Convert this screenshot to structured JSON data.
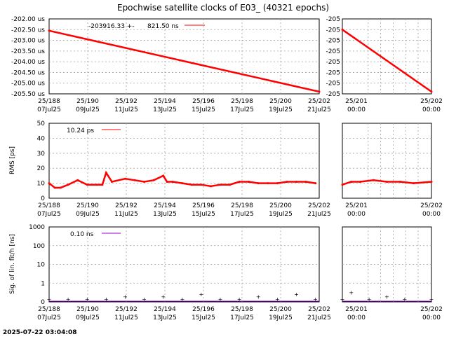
{
  "title": "Epochwise satellite clocks of E03_ (40321 epochs)",
  "timestamp": "2025-07-22 03:04:08",
  "colors": {
    "clock": "#ff0000",
    "rms": "#ff0000",
    "sig": "#9400d3",
    "grid": "#a0a0a0"
  },
  "chart_data": [
    {
      "id": "clock-main",
      "type": "line",
      "ylabel": "",
      "ytick_labels": [
        "-202.00 us",
        "-202.50 us",
        "-203.00 us",
        "-203.50 us",
        "-204.00 us",
        "-204.50 us",
        "-205.00 us",
        "-205.50 us"
      ],
      "ylim": [
        -205.5,
        -202.0
      ],
      "x_ticks": [
        {
          "top": "25/188",
          "bottom": "07Jul25"
        },
        {
          "top": "25/190",
          "bottom": "09Jul25"
        },
        {
          "top": "25/192",
          "bottom": "11Jul25"
        },
        {
          "top": "25/194",
          "bottom": "13Jul25"
        },
        {
          "top": "25/196",
          "bottom": "15Jul25"
        },
        {
          "top": "25/198",
          "bottom": "17Jul25"
        },
        {
          "top": "25/200",
          "bottom": "19Jul25"
        },
        {
          "top": "25/202",
          "bottom": "21Jul25"
        }
      ],
      "xlim": [
        188,
        202.2
      ],
      "legend": {
        "value_text": "-203916.33 +-",
        "value_text2": "821.50 ns"
      },
      "series": [
        {
          "x": [
            188.0,
            202.2
          ],
          "y": [
            -202.55,
            -205.4
          ]
        }
      ]
    },
    {
      "id": "clock-zoom",
      "type": "line",
      "ytick_labels": [
        "-205",
        "-205",
        "-205",
        "-205",
        "-205",
        "-205",
        "-205",
        "-205"
      ],
      "ylim": [
        -205.5,
        -202.0
      ],
      "x_ticks": [
        {
          "top": "25/201",
          "bottom": "00:00"
        },
        {
          "top": "25/202",
          "bottom": "00:00"
        }
      ],
      "series": [
        {
          "x": [
            201.0,
            202.0
          ],
          "y": [
            -202.5,
            -205.4
          ]
        }
      ]
    },
    {
      "id": "rms-main",
      "type": "line",
      "ylabel": "RMS [ps]",
      "ytick_labels": [
        "0",
        "10",
        "20",
        "30",
        "40",
        "50"
      ],
      "ylim": [
        0,
        50
      ],
      "xlim": [
        188,
        202.2
      ],
      "legend": {
        "value_text": "10.24 ps"
      },
      "series": [
        {
          "x": [
            188.0,
            188.3,
            188.6,
            189.0,
            189.5,
            190.0,
            190.5,
            190.8,
            191.0,
            191.3,
            192.0,
            192.5,
            193.0,
            193.5,
            194.0,
            194.2,
            194.5,
            195.0,
            195.5,
            196.0,
            196.5,
            197.0,
            197.5,
            198.0,
            198.5,
            199.0,
            199.5,
            200.0,
            200.5,
            201.0,
            201.5,
            202.0
          ],
          "y": [
            10,
            7,
            7,
            9,
            12,
            9,
            9,
            9,
            17,
            11,
            13,
            12,
            11,
            12,
            15,
            11,
            11,
            10,
            9,
            9,
            8,
            9,
            9,
            11,
            11,
            10,
            10,
            10,
            11,
            11,
            11,
            10
          ]
        }
      ]
    },
    {
      "id": "rms-zoom",
      "type": "line",
      "ytick_labels": [],
      "ylim": [
        0,
        50
      ],
      "x_ticks": [
        {
          "top": "25/201",
          "bottom": "00:00"
        },
        {
          "top": "25/202",
          "bottom": "00:00"
        }
      ],
      "series": [
        {
          "x": [
            201.0,
            201.1,
            201.2,
            201.35,
            201.5,
            201.65,
            201.8,
            202.0
          ],
          "y": [
            9,
            11,
            11,
            12,
            11,
            11,
            10,
            11
          ]
        }
      ]
    },
    {
      "id": "sig-main",
      "type": "scatter",
      "ylabel": "Sig. of lin. fit/h [ns]",
      "ytick_labels": [
        "0",
        "1",
        "10",
        "100",
        "1000"
      ],
      "yscale": "log",
      "xlim": [
        188,
        202.2
      ],
      "legend": {
        "value_text": "0.10 ns"
      },
      "series": [
        {
          "x": [
            188.0,
            189.0,
            190.0,
            191.0,
            192.0,
            193.0,
            194.0,
            195.0,
            196.0,
            197.0,
            198.0,
            199.0,
            200.0,
            201.0,
            202.0
          ],
          "y": [
            0.1,
            0.1,
            0.1,
            0.1,
            0.15,
            0.1,
            0.15,
            0.1,
            0.2,
            0.1,
            0.1,
            0.15,
            0.1,
            0.2,
            0.1
          ]
        }
      ]
    },
    {
      "id": "sig-zoom",
      "type": "scatter",
      "x_ticks": [
        {
          "top": "25/201",
          "bottom": "00:00"
        },
        {
          "top": "25/202",
          "bottom": "00:00"
        }
      ],
      "series": [
        {
          "x": [
            201.0,
            201.1,
            201.3,
            201.5,
            201.7,
            202.0
          ],
          "y": [
            0.1,
            0.25,
            0.1,
            0.15,
            0.1,
            0.1
          ]
        }
      ]
    }
  ]
}
